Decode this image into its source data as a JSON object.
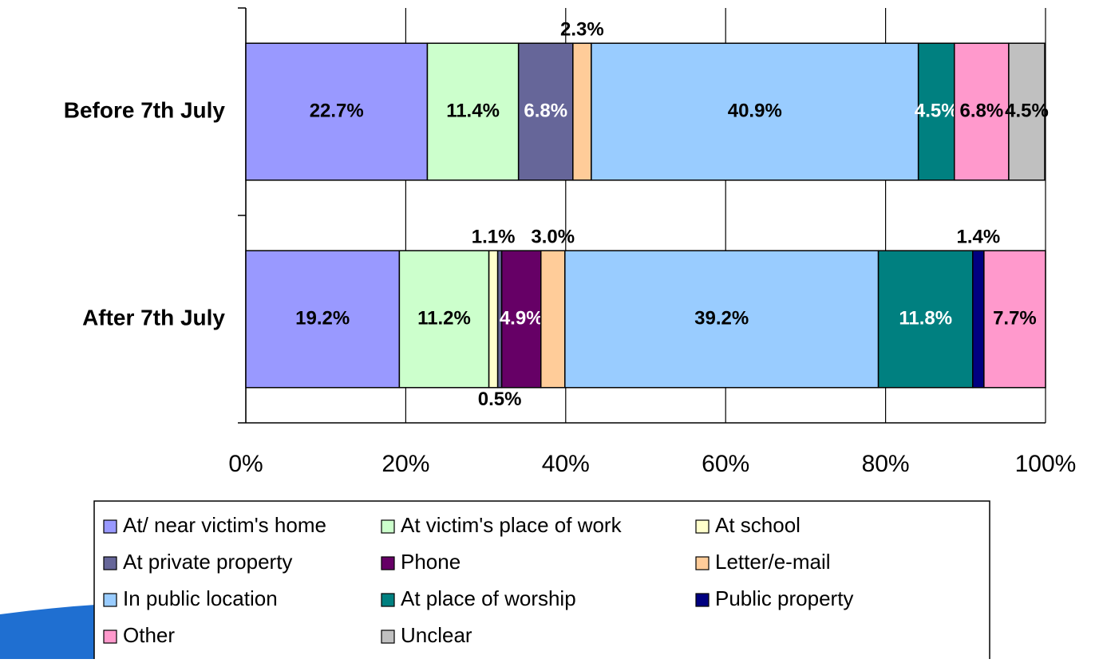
{
  "chart_data": {
    "type": "stacked-bar-horizontal",
    "categories": [
      "Before 7th July",
      "After 7th July"
    ],
    "series": [
      {
        "name": "At/ near victim's home",
        "color": "#9999ff",
        "values": [
          22.7,
          19.2
        ],
        "value_labels": [
          "22.7%",
          "19.2%"
        ]
      },
      {
        "name": "At victim's place of work",
        "color": "#ccffcc",
        "values": [
          11.4,
          11.2
        ],
        "value_labels": [
          "11.4%",
          "11.2%"
        ]
      },
      {
        "name": "At school",
        "color": "#ffffcc",
        "values": [
          null,
          1.1
        ],
        "value_labels": [
          null,
          "1.1%"
        ]
      },
      {
        "name": "At private property",
        "color": "#666699",
        "values": [
          6.8,
          0.5
        ],
        "value_labels": [
          "6.8%",
          "0.5%"
        ]
      },
      {
        "name": "Phone",
        "color": "#660066",
        "values": [
          null,
          4.9
        ],
        "value_labels": [
          null,
          "4.9%"
        ]
      },
      {
        "name": "Letter/e-mail",
        "color": "#ffcc99",
        "values": [
          2.3,
          3.0
        ],
        "value_labels": [
          "2.3%",
          "3.0%"
        ]
      },
      {
        "name": "In public location",
        "color": "#99ccff",
        "values": [
          40.9,
          39.2
        ],
        "value_labels": [
          "40.9%",
          "39.2%"
        ]
      },
      {
        "name": "At place of worship",
        "color": "#008080",
        "values": [
          4.5,
          11.8
        ],
        "value_labels": [
          "4.5%",
          "11.8%"
        ]
      },
      {
        "name": "Public property",
        "color": "#000080",
        "values": [
          null,
          1.4
        ],
        "value_labels": [
          null,
          "1.4%"
        ]
      },
      {
        "name": "Other",
        "color": "#ff99cc",
        "values": [
          6.8,
          7.7
        ],
        "value_labels": [
          "6.8%",
          "7.7%"
        ]
      },
      {
        "name": "Unclear",
        "color": "#c0c0c0",
        "values": [
          4.5,
          null
        ],
        "value_labels": [
          "4.5%",
          null
        ]
      }
    ],
    "xlim": [
      0,
      100
    ],
    "xticks": [
      {
        "value": 0,
        "label": "0%"
      },
      {
        "value": 20,
        "label": "20%"
      },
      {
        "value": 40,
        "label": "40%"
      },
      {
        "value": 60,
        "label": "60%"
      },
      {
        "value": 80,
        "label": "80%"
      },
      {
        "value": 100,
        "label": "100%"
      }
    ],
    "grid": true,
    "legend": "bottom"
  }
}
